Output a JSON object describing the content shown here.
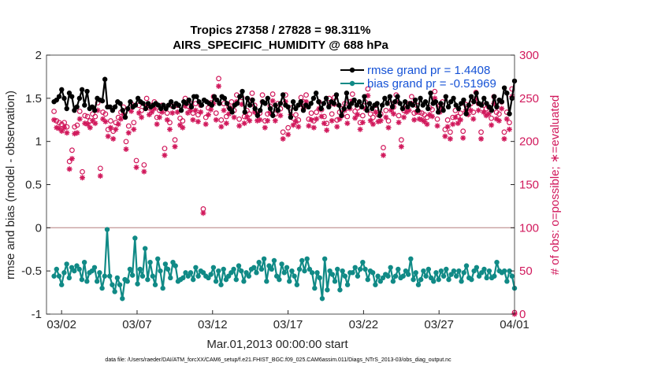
{
  "chart_data": {
    "type": "line",
    "title_line1": "Tropics 27358 / 27828 = 98.311%",
    "title_line2": "AIRS_SPECIFIC_HUMIDITY @ 688 hPa",
    "xlabel": "Mar.01,2013 00:00:00 start",
    "ylabel_left": "rmse and bias (model - observation)",
    "ylabel_right": "# of obs: o=possible; ∗=evaluated",
    "ylim_left": [
      -1,
      2
    ],
    "ylim_right": [
      0,
      300
    ],
    "xlim_days": [
      0,
      31
    ],
    "left_ticks": [
      "-1",
      "-0.5",
      "0",
      "0.5",
      "1",
      "1.5",
      "2"
    ],
    "right_ticks": [
      "0",
      "50",
      "100",
      "150",
      "200",
      "250",
      "300"
    ],
    "x_ticks": [
      {
        "day": 1,
        "label": "03/02"
      },
      {
        "day": 6,
        "label": "03/07"
      },
      {
        "day": 11,
        "label": "03/12"
      },
      {
        "day": 16,
        "label": "03/17"
      },
      {
        "day": 21,
        "label": "03/22"
      },
      {
        "day": 26,
        "label": "03/27"
      },
      {
        "day": 31,
        "label": "04/01"
      }
    ],
    "zero_line": 0,
    "series": [
      {
        "name": "rmse grand pr = 1.4408",
        "color": "#000000",
        "axis": "left",
        "values": [
          1.46,
          1.48,
          1.52,
          1.6,
          1.5,
          1.38,
          1.56,
          1.52,
          1.36,
          1.4,
          1.5,
          1.6,
          1.42,
          1.58,
          1.38,
          1.4,
          1.36,
          1.5,
          1.48,
          1.47,
          1.72,
          1.4,
          1.4,
          1.36,
          1.4,
          1.46,
          1.44,
          1.36,
          1.28,
          1.38,
          1.46,
          1.4,
          1.42,
          1.5,
          1.46,
          1.44,
          1.38,
          1.44,
          1.4,
          1.42,
          1.44,
          1.42,
          1.38,
          1.42,
          1.38,
          1.42,
          1.46,
          1.4,
          1.44,
          1.42,
          1.36,
          1.46,
          1.44,
          1.48,
          1.4,
          1.52,
          1.52,
          1.46,
          1.42,
          1.48,
          1.46,
          1.44,
          1.42,
          1.52,
          1.48,
          1.44,
          1.52,
          1.5,
          1.44,
          1.38,
          1.34,
          1.42,
          1.44,
          1.52,
          1.58,
          1.34,
          1.5,
          1.42,
          1.48,
          1.38,
          1.3,
          1.36,
          1.46,
          1.44,
          1.5,
          1.38,
          1.3,
          1.42,
          1.36,
          1.44,
          1.54,
          1.42,
          1.4,
          1.28,
          1.46,
          1.38,
          1.42,
          1.46,
          1.36,
          1.42,
          1.4,
          1.44,
          1.5,
          1.56,
          1.46,
          1.38,
          1.44,
          1.5,
          1.4,
          1.46,
          1.44,
          1.54,
          1.42,
          1.3,
          1.38,
          1.56,
          1.4,
          1.44,
          1.48,
          1.42,
          1.46,
          1.4,
          1.52,
          1.36,
          1.44,
          1.38,
          1.42,
          1.44,
          1.3,
          1.42,
          1.5,
          1.44,
          1.52,
          1.4,
          1.46,
          1.52,
          1.44,
          1.38,
          1.46,
          1.4,
          1.44,
          1.42,
          1.48,
          1.36,
          1.5,
          1.42,
          1.46,
          1.38,
          1.56,
          1.44,
          1.46,
          1.34,
          1.44,
          1.36,
          1.52,
          1.4,
          1.46,
          1.5,
          1.42,
          1.38,
          1.44,
          1.48,
          1.32,
          1.42,
          1.52,
          1.46,
          1.56,
          1.44,
          1.42,
          1.5,
          1.44,
          1.4,
          1.36,
          1.52,
          1.4,
          1.48,
          1.46,
          1.62,
          1.56,
          1.32,
          1.5,
          1.7
        ]
      },
      {
        "name": "bias grand pr = -0.51969",
        "color": "#108a86",
        "axis": "left",
        "values": [
          -0.56,
          -0.48,
          -0.56,
          -0.66,
          -0.52,
          -0.42,
          -0.58,
          -0.46,
          -0.5,
          -0.44,
          -0.48,
          -0.6,
          -0.4,
          -0.62,
          -0.52,
          -0.5,
          -0.46,
          -0.62,
          -0.52,
          -0.7,
          -0.56,
          -0.02,
          -0.56,
          -0.66,
          -0.74,
          -0.58,
          -0.66,
          -0.82,
          -0.6,
          -0.62,
          -0.48,
          -0.55,
          -0.12,
          -0.65,
          -0.48,
          -0.56,
          -0.24,
          -0.6,
          -0.4,
          -0.56,
          -0.66,
          -0.36,
          -0.5,
          -0.7,
          -0.42,
          -0.48,
          -0.58,
          -0.4,
          -0.44,
          -0.62,
          -0.6,
          -0.58,
          -0.52,
          -0.56,
          -0.52,
          -0.6,
          -0.46,
          -0.56,
          -0.5,
          -0.52,
          -0.56,
          -0.58,
          -0.54,
          -0.46,
          -0.62,
          -0.5,
          -0.66,
          -0.48,
          -0.6,
          -0.56,
          -0.52,
          -0.48,
          -0.6,
          -0.44,
          -0.5,
          -0.62,
          -0.52,
          -0.56,
          -0.48,
          -0.46,
          -0.52,
          -0.4,
          -0.48,
          -0.36,
          -0.62,
          -0.44,
          -0.48,
          -0.38,
          -0.56,
          -0.6,
          -0.42,
          -0.52,
          -0.46,
          -0.62,
          -0.5,
          -0.56,
          -0.66,
          -0.48,
          -0.38,
          -0.5,
          -0.36,
          -0.48,
          -0.52,
          -0.7,
          -0.52,
          -0.58,
          -0.82,
          -0.36,
          -0.72,
          -0.5,
          -0.54,
          -0.62,
          -0.48,
          -0.72,
          -0.5,
          -0.56,
          -0.66,
          -0.52,
          -0.52,
          -0.46,
          -0.56,
          -0.48,
          -0.4,
          -0.48,
          -0.6,
          -0.5,
          -0.52,
          -0.66,
          -0.56,
          -0.62,
          -0.58,
          -0.54,
          -0.56,
          -0.46,
          -0.62,
          -0.56,
          -0.48,
          -0.58,
          -0.56,
          -0.5,
          -0.54,
          -0.36,
          -0.6,
          -0.52,
          -0.66,
          -0.6,
          -0.5,
          -0.56,
          -0.48,
          -0.58,
          -0.62,
          -0.52,
          -0.6,
          -0.5,
          -0.56,
          -0.48,
          -0.6,
          -0.54,
          -0.5,
          -0.56,
          -0.5,
          -0.62,
          -0.52,
          -0.44,
          -0.58,
          -0.6,
          -0.5,
          -0.46,
          -0.56,
          -0.52,
          -0.48,
          -0.58,
          -0.5,
          -0.58,
          -0.56,
          -0.4,
          -0.5,
          -0.52,
          -0.5,
          -0.62,
          -0.5,
          -0.56,
          -0.7
        ]
      },
      {
        "name": "possible obs",
        "color": "#d1195c",
        "axis": "right",
        "marker": "o",
        "values": [
          233,
          222,
          220,
          218,
          220,
          215,
          175,
          188,
          215,
          217,
          233,
          163,
          228,
          227,
          222,
          230,
          227,
          243,
          167,
          232,
          230,
          212,
          222,
          210,
          220,
          226,
          232,
          238,
          198,
          216,
          242,
          220,
          176,
          240,
          234,
          171,
          248,
          237,
          240,
          244,
          226,
          234,
          240,
          190,
          231,
          220,
          239,
          200,
          240,
          225,
          222,
          248,
          239,
          242,
          231,
          242,
          229,
          240,
          120,
          226,
          237,
          243,
          250,
          231,
          271,
          223,
          242,
          227,
          238,
          244,
          234,
          252,
          224,
          249,
          227,
          234,
          230,
          254,
          240,
          230,
          231,
          252,
          222,
          230,
          239,
          253,
          230,
          242,
          236,
          209,
          252,
          214,
          237,
          225,
          229,
          223,
          249,
          244,
          252,
          224,
          231,
          222,
          232,
          244,
          235,
          227,
          219,
          248,
          230,
          249,
          223,
          232,
          236,
          242,
          227,
          244,
          253,
          233,
          237,
          220,
          228,
          244,
          259,
          230,
          226,
          240,
          229,
          230,
          191,
          234,
          222,
          242,
          238,
          252,
          228,
          200,
          234,
          240,
          242,
          250,
          231,
          240,
          232,
          231,
          229,
          226,
          237,
          235,
          256,
          224,
          240,
          244,
          212,
          223,
          209,
          226,
          234,
          227,
          231,
          210,
          241,
          237,
          242,
          232,
          255,
          242,
          209,
          240,
          236,
          238,
          225,
          250,
          232,
          230,
          244,
          209,
          232,
          220,
          259,
          0
        ]
      },
      {
        "name": "evaluated obs",
        "color": "#d1195c",
        "axis": "right",
        "marker": "*",
        "values": [
          225,
          216,
          215,
          212,
          216,
          210,
          168,
          180,
          209,
          210,
          226,
          158,
          221,
          220,
          216,
          224,
          221,
          236,
          160,
          226,
          223,
          206,
          216,
          203,
          214,
          220,
          226,
          231,
          191,
          210,
          235,
          214,
          170,
          233,
          228,
          165,
          241,
          231,
          234,
          238,
          220,
          228,
          234,
          184,
          225,
          214,
          233,
          194,
          234,
          219,
          216,
          241,
          233,
          236,
          225,
          236,
          223,
          234,
          117,
          220,
          231,
          237,
          244,
          225,
          264,
          217,
          236,
          221,
          232,
          238,
          228,
          246,
          218,
          243,
          221,
          228,
          224,
          248,
          234,
          224,
          225,
          246,
          216,
          224,
          233,
          247,
          224,
          236,
          230,
          203,
          246,
          208,
          231,
          219,
          223,
          217,
          243,
          238,
          246,
          218,
          225,
          216,
          226,
          238,
          229,
          221,
          213,
          242,
          224,
          243,
          217,
          226,
          230,
          236,
          221,
          238,
          247,
          227,
          231,
          214,
          222,
          238,
          253,
          224,
          220,
          234,
          223,
          224,
          184,
          228,
          216,
          236,
          232,
          246,
          222,
          194,
          228,
          234,
          236,
          244,
          225,
          234,
          226,
          225,
          223,
          220,
          231,
          229,
          250,
          218,
          234,
          238,
          206,
          217,
          203,
          220,
          228,
          221,
          225,
          204,
          235,
          231,
          236,
          226,
          249,
          236,
          203,
          234,
          230,
          232,
          219,
          244,
          226,
          224,
          238,
          203,
          226,
          214,
          252,
          0
        ]
      }
    ],
    "legend": {
      "placement": "top-right",
      "entries": [
        "rmse grand pr = 1.4408",
        "bias grand pr = -0.51969"
      ]
    }
  },
  "footer": {
    "datafile": "data file: /Users/raeder/DAI/ATM_forcXX/CAM6_setup/f.e21.FHIST_BGC.f09_025.CAM6assim.011/Diags_NTrS_2013-03/obs_diag_output.nc"
  }
}
